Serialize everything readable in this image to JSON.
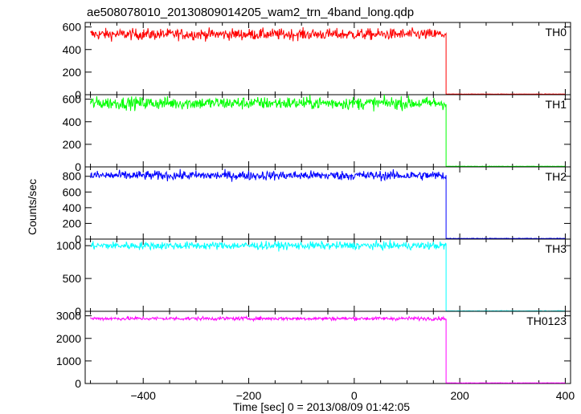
{
  "chart_data": {
    "type": "line",
    "title": "ae508078010_20130809014205_wam2_trn_4band_long.qdp",
    "xlabel": "Time [sec] 0 = 2013/08/09 01:42:05",
    "ylabel": "Counts/sec",
    "xlim": [
      -510,
      410
    ],
    "x_ticks": [
      -400,
      -200,
      0,
      200,
      400
    ],
    "grid": false,
    "series": [
      {
        "name": "TH0",
        "color": "#ff0000",
        "ylim": [
          0,
          640
        ],
        "y_ticks": [
          0,
          200,
          400,
          600
        ],
        "segments": [
          {
            "x_start": -500,
            "x_end": 174,
            "level": 535,
            "noise": 25
          },
          {
            "x_start": 174,
            "x_end": 400,
            "level": 5,
            "noise": 1
          }
        ]
      },
      {
        "name": "TH1",
        "color": "#00ff00",
        "ylim": [
          0,
          640
        ],
        "y_ticks": [
          0,
          200,
          400,
          600
        ],
        "segments": [
          {
            "x_start": -500,
            "x_end": 174,
            "level": 565,
            "noise": 28
          },
          {
            "x_start": 174,
            "x_end": 400,
            "level": 5,
            "noise": 1
          }
        ]
      },
      {
        "name": "TH2",
        "color": "#0000ff",
        "ylim": [
          0,
          920
        ],
        "y_ticks": [
          0,
          200,
          400,
          600,
          800
        ],
        "segments": [
          {
            "x_start": -500,
            "x_end": 174,
            "level": 810,
            "noise": 30
          },
          {
            "x_start": 174,
            "x_end": 400,
            "level": 8,
            "noise": 2
          }
        ]
      },
      {
        "name": "TH3",
        "color": "#00ffff",
        "ylim": [
          0,
          1100
        ],
        "y_ticks": [
          0,
          500,
          1000
        ],
        "segments": [
          {
            "x_start": -500,
            "x_end": 174,
            "level": 1000,
            "noise": 30
          },
          {
            "x_start": 174,
            "x_end": 400,
            "level": 6,
            "noise": 2
          }
        ]
      },
      {
        "name": "TH0123",
        "color": "#ff00ff",
        "ylim": [
          0,
          3200
        ],
        "y_ticks": [
          0,
          1000,
          2000,
          3000
        ],
        "segments": [
          {
            "x_start": -500,
            "x_end": 174,
            "level": 2880,
            "noise": 40
          },
          {
            "x_start": 174,
            "x_end": 400,
            "level": 25,
            "noise": 4
          }
        ]
      }
    ]
  }
}
